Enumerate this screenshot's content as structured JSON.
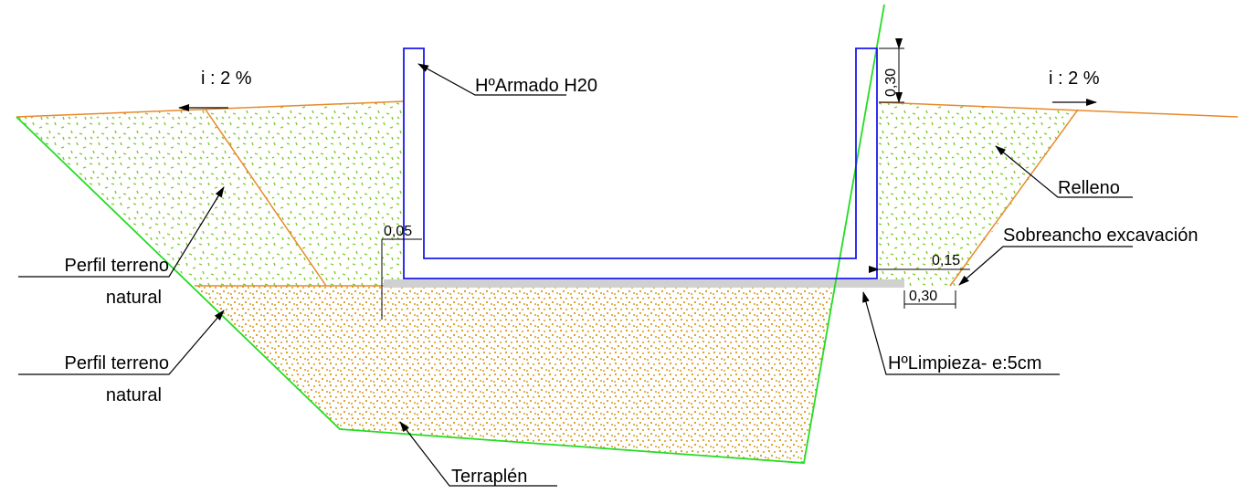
{
  "labels": {
    "slope_left": "i : 2 %",
    "slope_right": "i : 2 %",
    "concrete": "HºArmado H20",
    "wall_height": "0,30",
    "fill": "Relleno",
    "overwidth": "Sobreancho excavación",
    "overwidth_h": "0,15",
    "overwidth_w": "0,30",
    "lean_thickness": "0,05",
    "terrain_1": [
      "Perfil terreno",
      "natural"
    ],
    "terrain_2": [
      "Perfil terreno",
      "natural"
    ],
    "lean_concrete": "HºLimpieza- e:5cm",
    "embankment": "Terraplén"
  }
}
